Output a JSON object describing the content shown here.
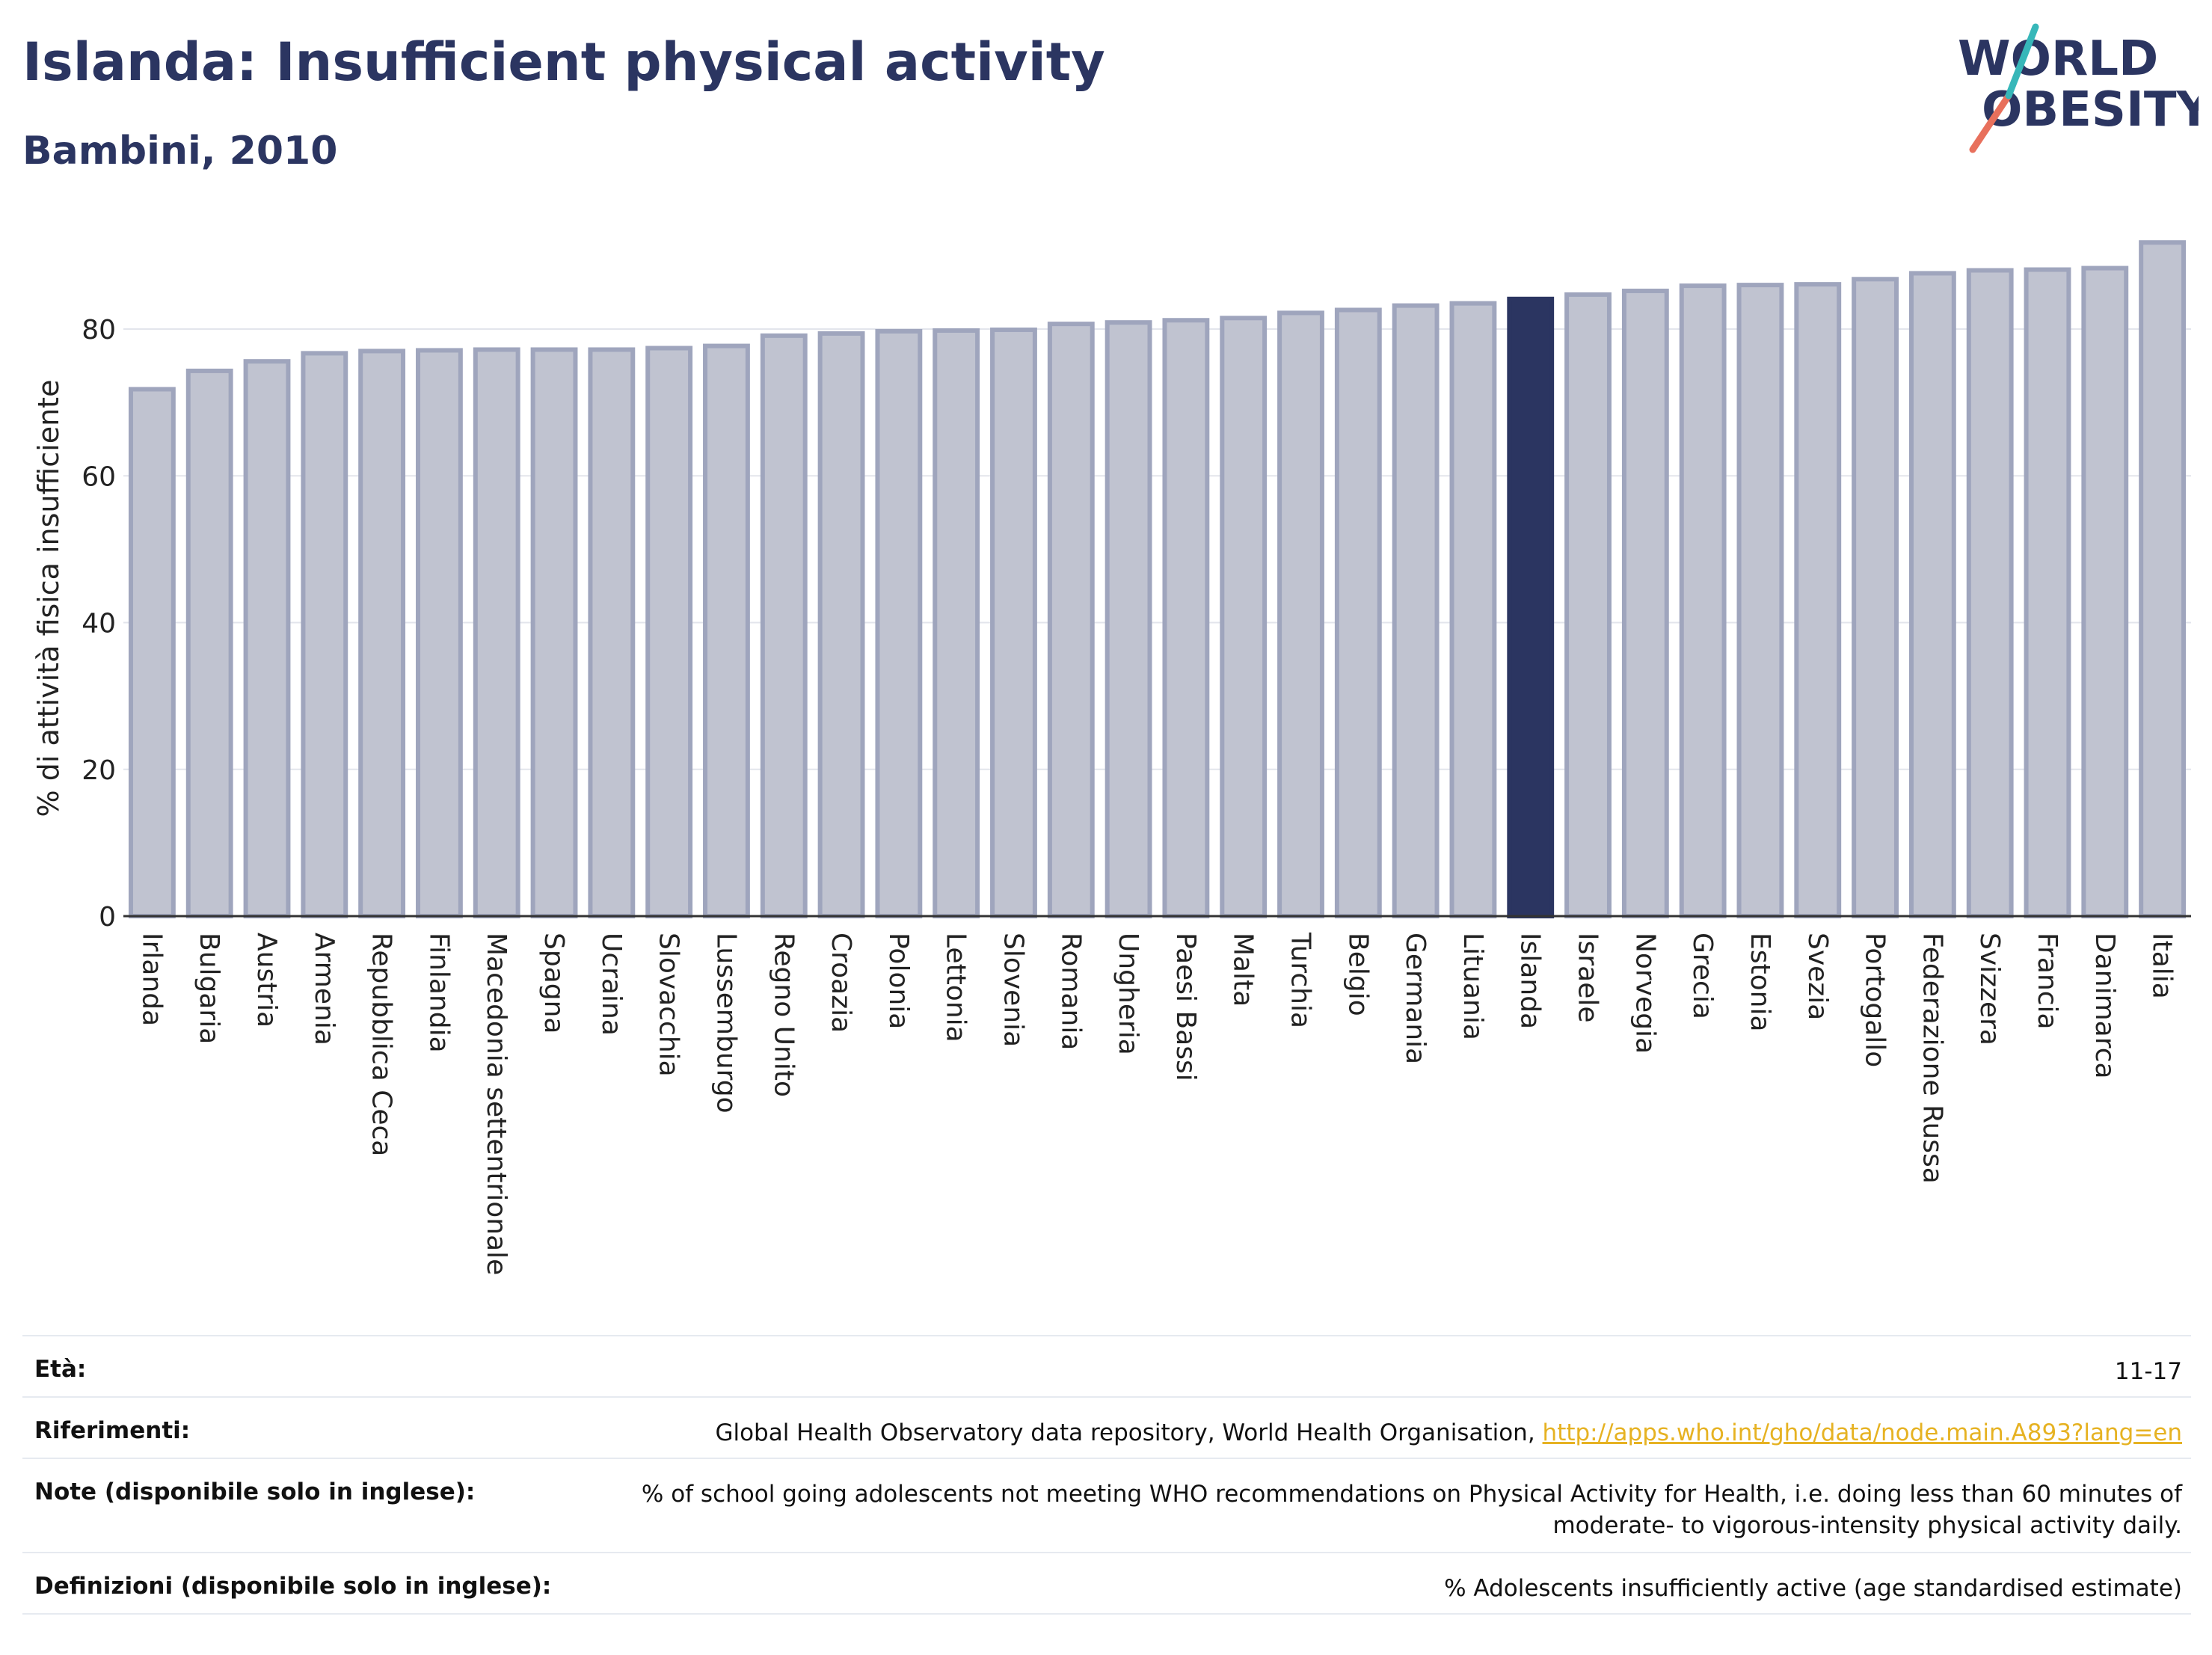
{
  "header": {
    "title": "Islanda: Insufficient physical activity",
    "subtitle": "Bambini, 2010"
  },
  "logo": {
    "line1": "WORLD",
    "line2": "OBESITY"
  },
  "colors": {
    "highlight": "#2b3561",
    "bar_fill": "#c0c3d0",
    "bar_stroke": "#9fa5bd",
    "text": "#2b3561"
  },
  "chart_data": {
    "type": "bar",
    "ylabel": "% di attività fisica insufficiente",
    "ylim": [
      0,
      93
    ],
    "yticks": [
      0,
      20,
      40,
      60,
      80
    ],
    "grid": true,
    "highlight": "Islanda",
    "categories": [
      "Irlanda",
      "Bulgaria",
      "Austria",
      "Armenia",
      "Repubblica Ceca",
      "Finlandia",
      "Macedonia settentrionale",
      "Spagna",
      "Ucraina",
      "Slovacchia",
      "Lussemburgo",
      "Regno Unito",
      "Croazia",
      "Polonia",
      "Lettonia",
      "Slovenia",
      "Romania",
      "Ungheria",
      "Paesi Bassi",
      "Malta",
      "Turchia",
      "Belgio",
      "Germania",
      "Lituania",
      "Islanda",
      "Israele",
      "Norvegia",
      "Grecia",
      "Estonia",
      "Svezia",
      "Portogallo",
      "Federazione Russa",
      "Svizzera",
      "Francia",
      "Danimarca",
      "Italia"
    ],
    "values": [
      71.8,
      74.3,
      75.6,
      76.7,
      77.0,
      77.1,
      77.2,
      77.2,
      77.2,
      77.4,
      77.7,
      79.1,
      79.4,
      79.7,
      79.8,
      79.9,
      80.7,
      80.9,
      81.2,
      81.5,
      82.2,
      82.6,
      83.2,
      83.5,
      84.1,
      84.7,
      85.2,
      85.9,
      86.0,
      86.1,
      86.8,
      87.6,
      88.0,
      88.1,
      88.3,
      91.8
    ]
  },
  "meta": {
    "rows": [
      {
        "key": "Età:",
        "value": "11-17"
      },
      {
        "key": "Riferimenti:",
        "value": "Global Health Observatory data repository, World Health Organisation, ",
        "link": "http://apps.who.int/gho/data/node.main.A893?lang=en"
      },
      {
        "key": "Note (disponibile solo in inglese):",
        "value": "% of school going adolescents not meeting WHO recommendations on Physical Activity for Health, i.e. doing less than 60 minutes of moderate- to vigorous-intensity physical activity daily."
      },
      {
        "key": "Definizioni (disponibile solo in inglese):",
        "value": "% Adolescents insufficiently active (age standardised estimate)"
      }
    ]
  }
}
